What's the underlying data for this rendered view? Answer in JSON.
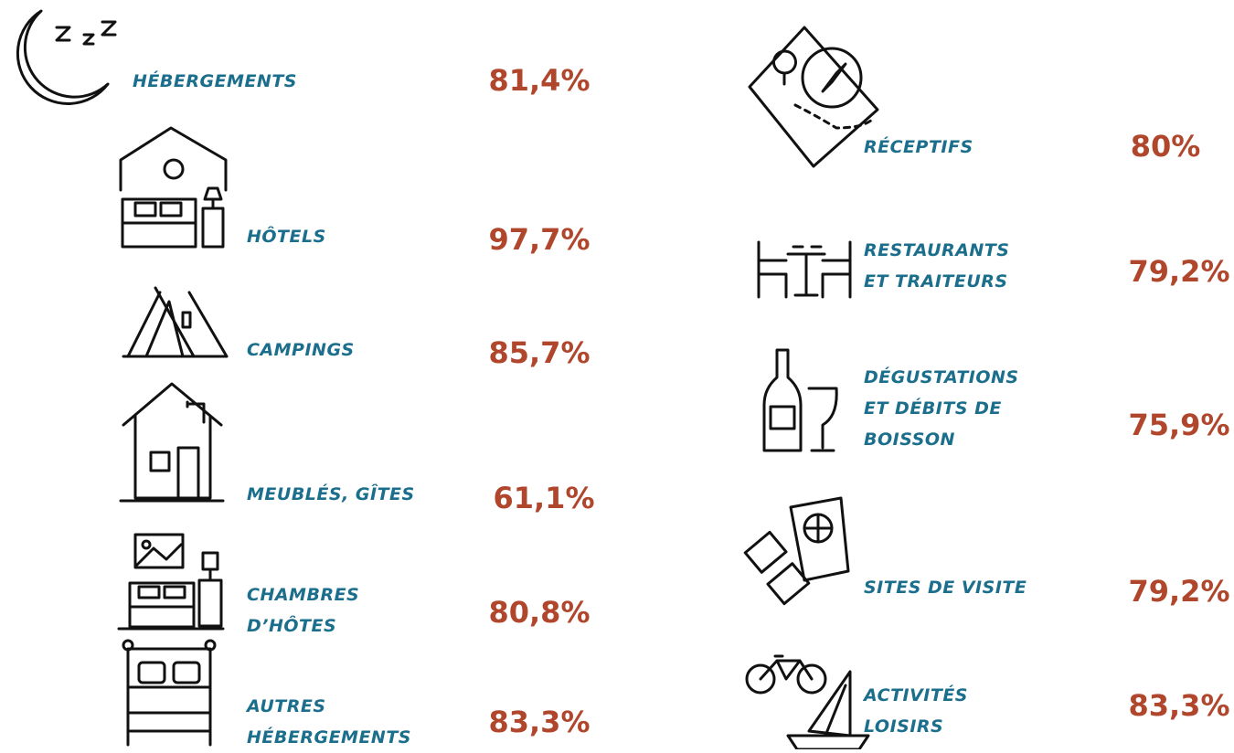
{
  "items": [
    {
      "label": [
        "HÉBERGEMENTS"
      ],
      "value": "81,4%"
    },
    {
      "label": [
        "HÔTELS"
      ],
      "value": "97,7%"
    },
    {
      "label": [
        "CAMPINGS"
      ],
      "value": "85,7%"
    },
    {
      "label": [
        "MEUBLÉS, GÎTES"
      ],
      "value": "61,1%"
    },
    {
      "label": [
        "CHAMBRES",
        "D’HÔTES"
      ],
      "value": "80,8%"
    },
    {
      "label": [
        "AUTRES",
        "HÉBERGEMENTS"
      ],
      "value": "83,3%"
    },
    {
      "label": [
        "RÉCEPTIFS"
      ],
      "value": "80%"
    },
    {
      "label": [
        "RESTAURANTS",
        "ET TRAITEURS"
      ],
      "value": "79,2%"
    },
    {
      "label": [
        "DÉGUSTATIONS",
        "ET DÉBITS DE",
        "BOISSON"
      ],
      "value": "75,9%"
    },
    {
      "label": [
        "SITES DE VISITE"
      ],
      "value": "79,2%"
    },
    {
      "label": [
        "ACTIVITÉS",
        "LOISIRS"
      ],
      "value": "83,3%"
    }
  ]
}
